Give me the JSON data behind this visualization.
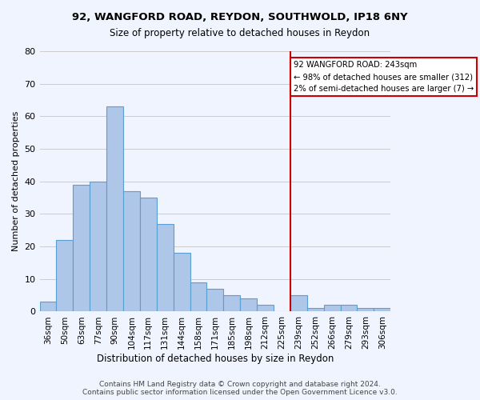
{
  "title1": "92, WANGFORD ROAD, REYDON, SOUTHWOLD, IP18 6NY",
  "title2": "Size of property relative to detached houses in Reydon",
  "xlabel": "Distribution of detached houses by size in Reydon",
  "ylabel": "Number of detached properties",
  "categories": [
    "36sqm",
    "50sqm",
    "63sqm",
    "77sqm",
    "90sqm",
    "104sqm",
    "117sqm",
    "131sqm",
    "144sqm",
    "158sqm",
    "171sqm",
    "185sqm",
    "198sqm",
    "212sqm",
    "225sqm",
    "239sqm",
    "252sqm",
    "266sqm",
    "279sqm",
    "293sqm",
    "306sqm"
  ],
  "values": [
    3,
    22,
    39,
    40,
    63,
    37,
    35,
    27,
    18,
    9,
    7,
    5,
    4,
    2,
    0,
    5,
    1,
    2,
    2,
    1,
    1
  ],
  "bar_color": "#aec6e8",
  "bar_edge_color": "#5a9fd4",
  "background_color": "#f0f4ff",
  "grid_color": "#cccccc",
  "vline_x": 14.5,
  "vline_color": "#cc0000",
  "annotation_text": "92 WANGFORD ROAD: 243sqm\n← 98% of detached houses are smaller (312)\n2% of semi-detached houses are larger (7) →",
  "annotation_box_color": "#cc0000",
  "footer": "Contains HM Land Registry data © Crown copyright and database right 2024.\nContains public sector information licensed under the Open Government Licence v3.0.",
  "ylim": [
    0,
    80
  ],
  "yticks": [
    0,
    10,
    20,
    30,
    40,
    50,
    60,
    70,
    80
  ]
}
